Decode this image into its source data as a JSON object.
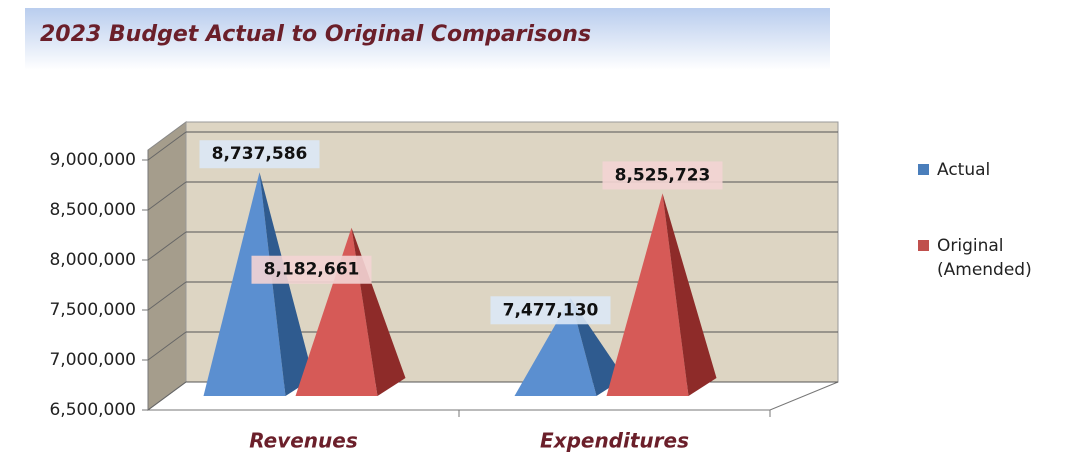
{
  "chart_data": {
    "type": "pyramid",
    "title": "2023 Budget Actual to Original Comparisons",
    "categories": [
      "Revenues",
      "Expenditures"
    ],
    "series": [
      {
        "name": "Actual",
        "color": "#4a7ebb",
        "values": [
          8737586,
          7477130
        ],
        "value_labels": [
          "8,737,586",
          "7,477,130"
        ]
      },
      {
        "name": "Original (Amended)",
        "color": "#c0504d",
        "values": [
          8182661,
          8525723
        ],
        "value_labels": [
          "8,182,661",
          "8,525,723"
        ]
      }
    ],
    "ylim": [
      6500000,
      9000000
    ],
    "yticks": [
      {
        "value": 6500000,
        "label": "6,500,000"
      },
      {
        "value": 7000000,
        "label": "7,000,000"
      },
      {
        "value": 7500000,
        "label": "7,500,000"
      },
      {
        "value": 8000000,
        "label": "8,000,000"
      },
      {
        "value": 8500000,
        "label": "8,500,000"
      },
      {
        "value": 9000000,
        "label": "9,000,000"
      }
    ],
    "grid": true,
    "legend": "right"
  }
}
